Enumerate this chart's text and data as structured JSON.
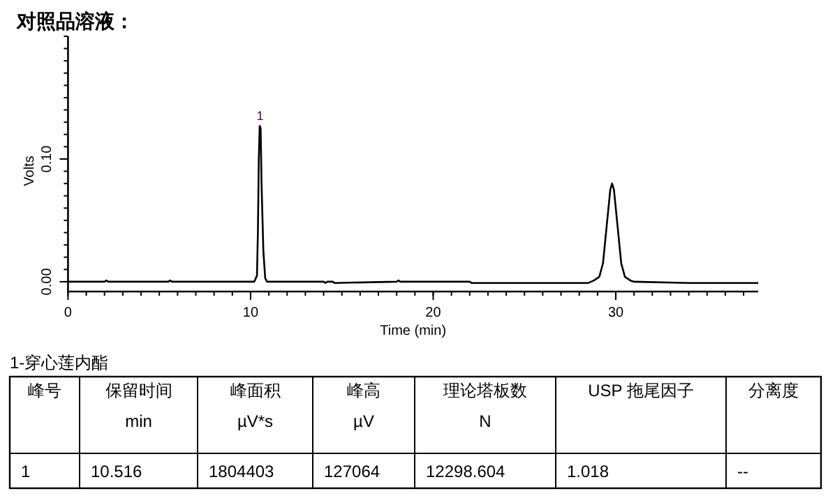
{
  "chart_data": {
    "type": "line",
    "title": "对照品溶液：",
    "xlabel": "Time (min)",
    "ylabel": "Volts",
    "xlim": [
      0,
      37.8
    ],
    "ylim": [
      -0.008,
      0.2
    ],
    "xticks": [
      0,
      10,
      20,
      30
    ],
    "yticks": [
      {
        "value": 0,
        "label": "0.00"
      },
      {
        "value": 0.1,
        "label": "0.10"
      }
    ],
    "grid": false,
    "series": [
      {
        "color": "#000000",
        "x": [
          0,
          2,
          2.1,
          2.2,
          5.5,
          5.6,
          5.7,
          10.2,
          10.35,
          10.4,
          10.45,
          10.5,
          10.55,
          10.6,
          10.7,
          10.8,
          10.9,
          14,
          14.1,
          14.2,
          14.5,
          14.6,
          18,
          18.1,
          18.2,
          22,
          22.1,
          26,
          27.5,
          28.5,
          28.8,
          29.1,
          29.3,
          29.5,
          29.7,
          29.8,
          29.9,
          30.1,
          30.3,
          30.5,
          30.8,
          31,
          34,
          37.8
        ],
        "values": [
          0,
          0,
          0.001,
          0,
          0,
          0.001,
          0,
          0,
          0.005,
          0.04,
          0.1,
          0.127,
          0.125,
          0.08,
          0.025,
          0.003,
          0,
          0,
          -0.001,
          0,
          0,
          -0.001,
          0,
          0.001,
          0,
          0,
          -0.001,
          -0.001,
          -0.001,
          -0.001,
          0.001,
          0.004,
          0.015,
          0.045,
          0.075,
          0.08,
          0.075,
          0.045,
          0.015,
          0.004,
          0.001,
          0,
          -0.001,
          -0.001
        ]
      }
    ],
    "annotations": [
      {
        "text": "1",
        "x": 10.516,
        "y": 0.127
      },
      "1-穿心莲内酯",
      "峰号",
      "保留时间\nmin",
      "峰面积\nµV*s",
      "峰高\nµV",
      "理论塔板数\nN",
      "USP 拖尾因子",
      "分离度",
      "1",
      "10.516",
      "1804403",
      "127064",
      "12298.604",
      "1.018",
      "--"
    ]
  }
}
